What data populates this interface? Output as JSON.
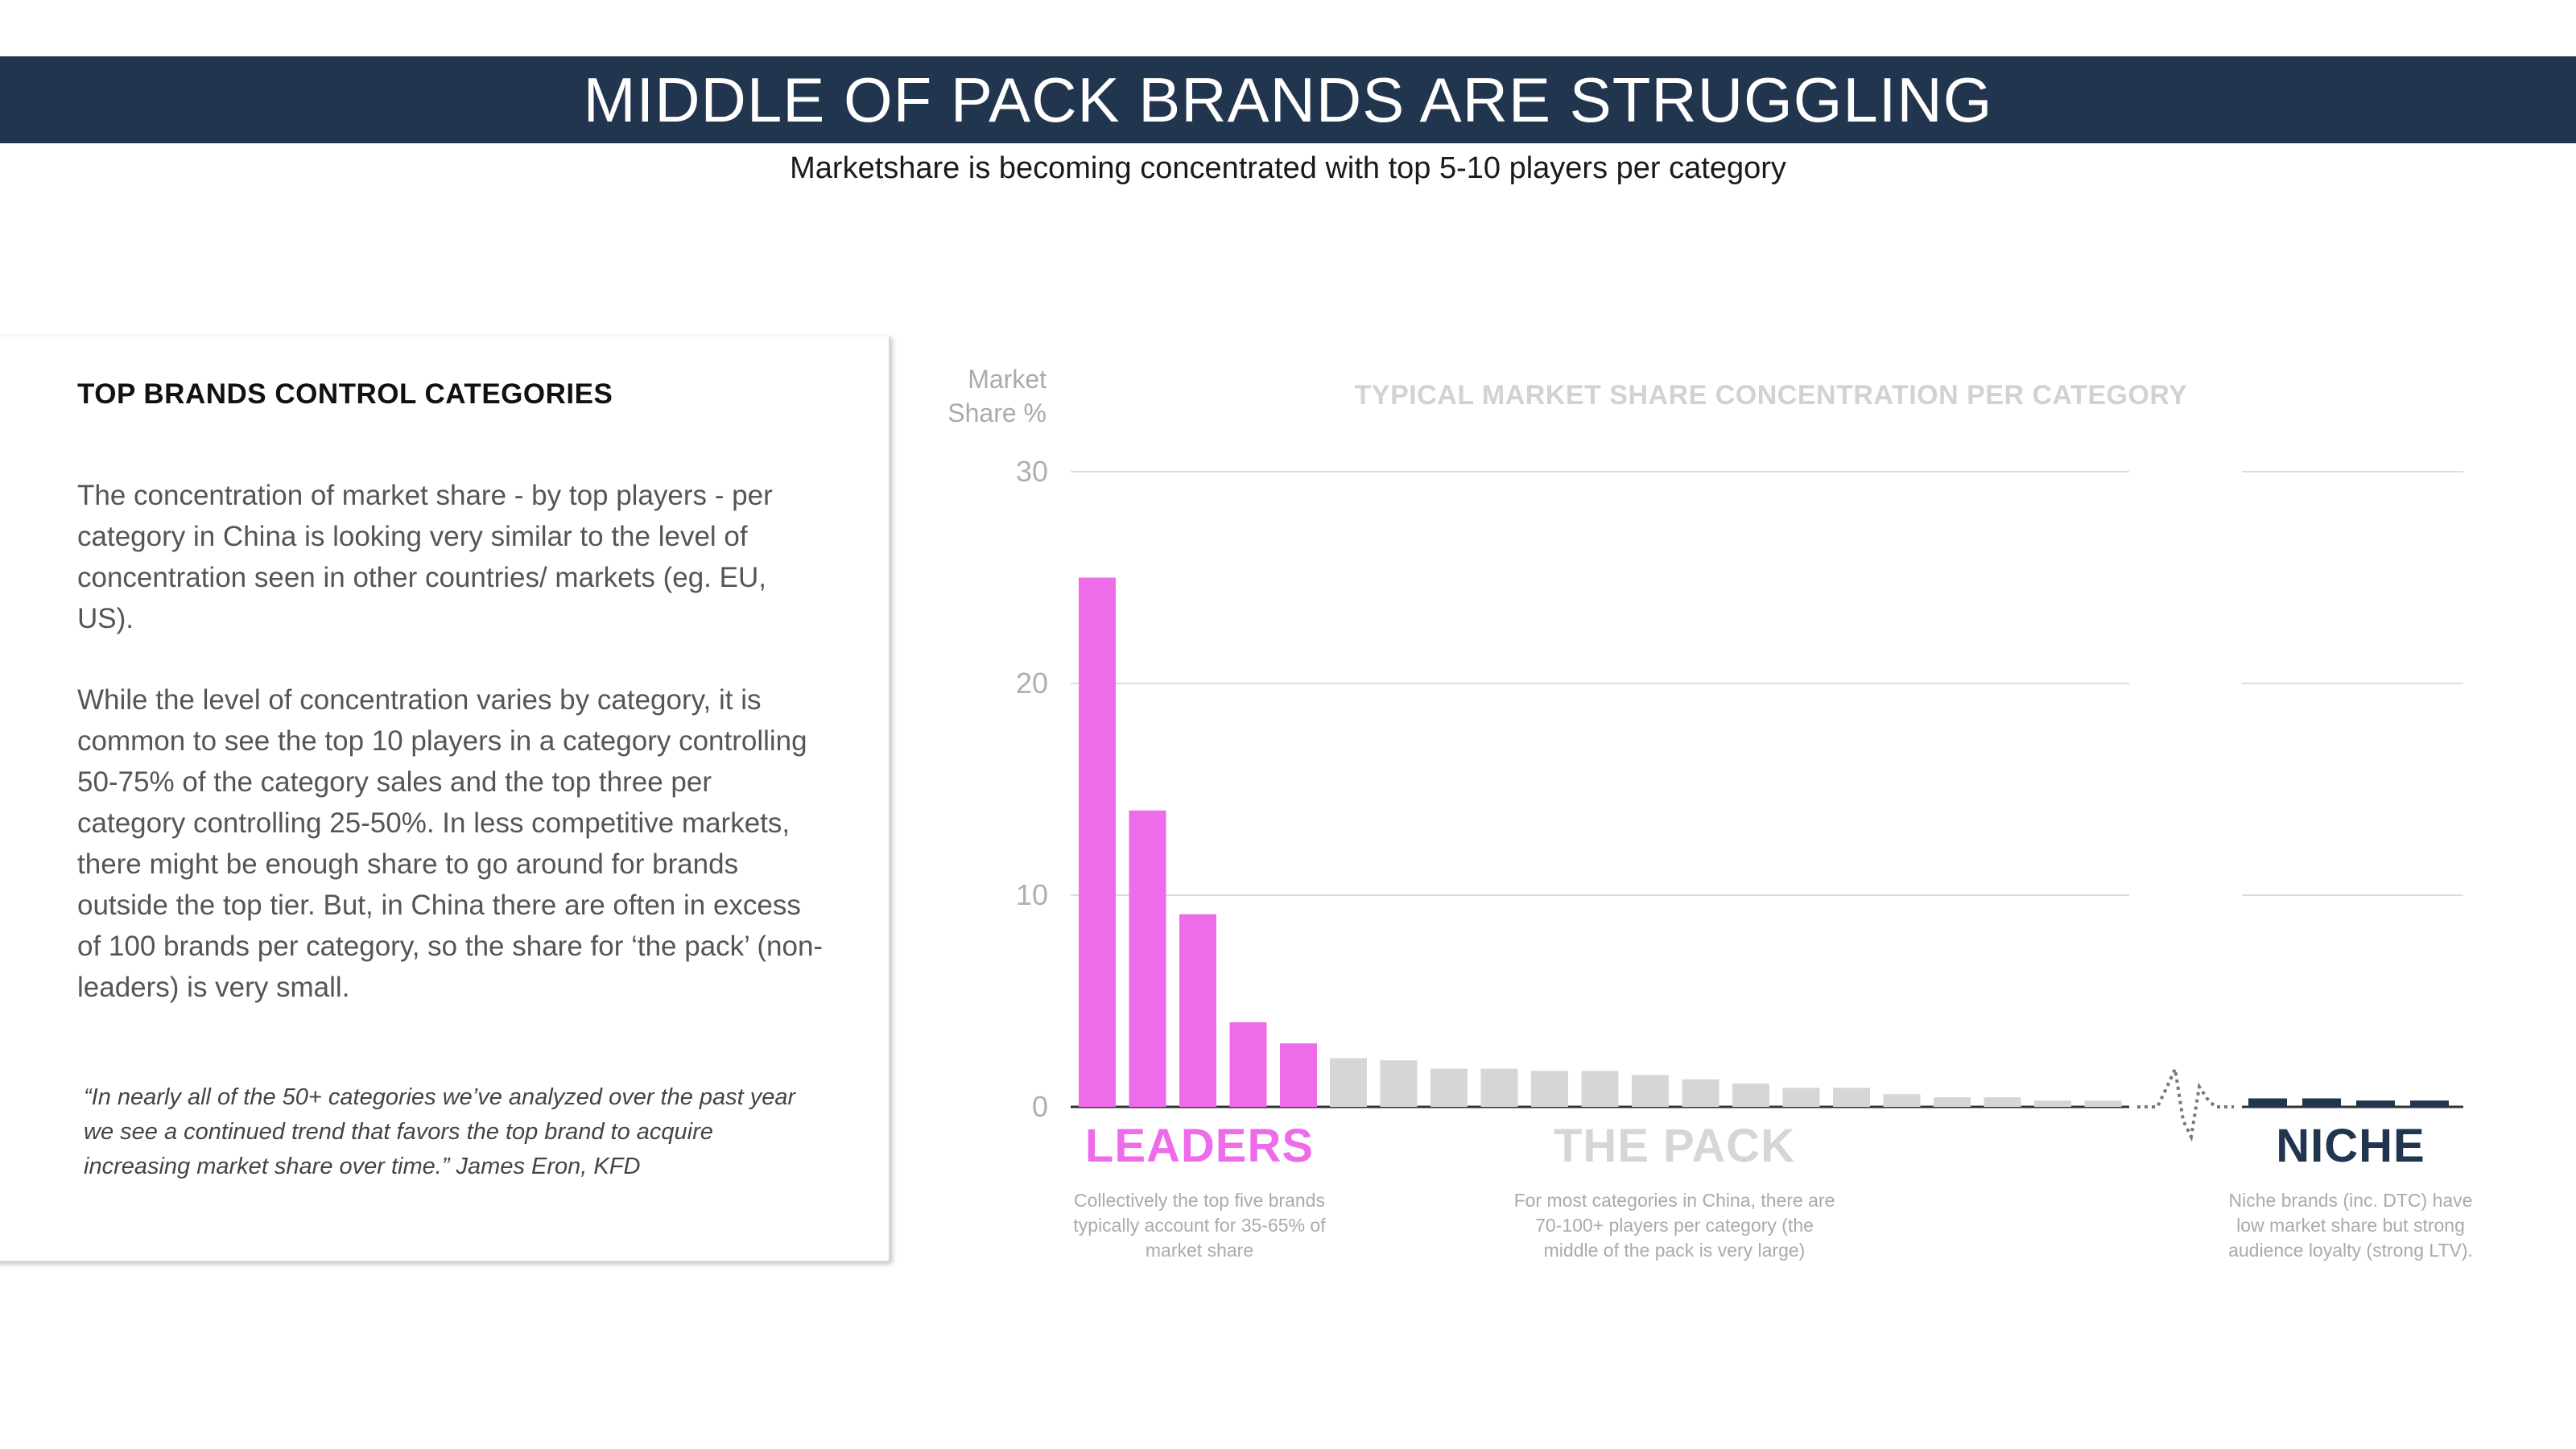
{
  "header": {
    "title": "MIDDLE OF PACK BRANDS ARE STRUGGLING",
    "subtitle": "Marketshare is becoming concentrated with top 5-10 players per category"
  },
  "panel": {
    "heading": "TOP BRANDS CONTROL CATEGORIES",
    "paragraph1": "The concentration of market share - by top players - per category in China is looking very similar to the level of concentration seen in other countries/ markets (eg. EU, US).",
    "paragraph2": "While the level of concentration varies by category, it is common to see the top 10 players in a category controlling 50-75% of the category sales and the top three per category controlling 25-50%. In less competitive markets, there might be enough share to go around for brands outside the top tier. But, in China there are often in excess of 100 brands per category, so the share for ‘the pack’ (non-leaders) is very small.",
    "quote": "“In nearly all of the 50+ categories we’ve analyzed over the past year we see a continued trend that favors the top brand to acquire increasing market share over time.” James Eron, KFD"
  },
  "groups": {
    "leaders": {
      "label": "LEADERS",
      "desc": "Collectively the top five brands typically account for 35-65% of market share",
      "color": "#ee6ce9"
    },
    "pack": {
      "label": "THE PACK",
      "desc": "For most categories in China, there are 70-100+ players per category (the  middle of the pack is very large)",
      "color": "#d6d6d6"
    },
    "niche": {
      "label": "NICHE",
      "desc": "Niche brands (inc. DTC) have low market share but strong audience loyalty (strong LTV).",
      "color": "#22354e"
    }
  },
  "chart_data": {
    "type": "bar",
    "title": "TYPICAL MARKET SHARE CONCENTRATION PER CATEGORY",
    "ylabel": "Market Share %",
    "ylim": [
      0,
      30
    ],
    "yticks": [
      "30",
      "20",
      "10",
      "0"
    ],
    "grid": true,
    "axis_break": true,
    "series": [
      {
        "group": "leaders",
        "values": [
          25,
          14,
          9.1,
          4,
          3
        ]
      },
      {
        "group": "pack",
        "values": [
          2.3,
          2.2,
          1.8,
          1.8,
          1.7,
          1.7,
          1.5,
          1.3,
          1.1,
          0.9,
          0.9,
          0.6,
          0.45,
          0.45,
          0.3,
          0.3
        ]
      },
      {
        "group": "niche",
        "values": [
          0.4,
          0.4,
          0.3,
          0.3
        ]
      }
    ]
  }
}
